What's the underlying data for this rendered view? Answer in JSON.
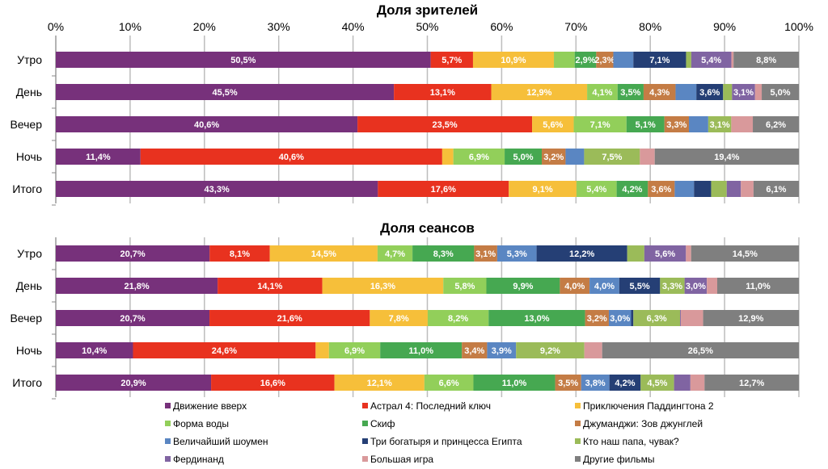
{
  "chart_data": [
    {
      "type": "bar",
      "orientation": "horizontal",
      "stacked": "percent",
      "title": "Доля зрителей",
      "xlim": [
        0,
        100
      ],
      "x_ticks": [
        "0%",
        "10%",
        "20%",
        "30%",
        "40%",
        "50%",
        "60%",
        "70%",
        "80%",
        "90%",
        "100%"
      ],
      "grid": true,
      "categories": [
        "Утро",
        "День",
        "Вечер",
        "Ночь",
        "Итого"
      ],
      "rows": [
        {
          "values": [
            50.5,
            5.7,
            10.9,
            2.8,
            2.9,
            2.3,
            2.7,
            7.1,
            0.7,
            5.4,
            0.3,
            8.8
          ],
          "labels": [
            "50,5%",
            "5,7%",
            "10,9%",
            "",
            "2,9%",
            "2,3%",
            "",
            "7,1%",
            "",
            "5,4%",
            "",
            "8,8%"
          ]
        },
        {
          "values": [
            45.5,
            13.1,
            12.9,
            4.1,
            3.5,
            4.3,
            2.8,
            3.6,
            1.2,
            3.1,
            0.9,
            5.0
          ],
          "labels": [
            "45,5%",
            "13,1%",
            "12,9%",
            "4,1%",
            "3,5%",
            "4,3%",
            "",
            "3,6%",
            "",
            "3,1%",
            "",
            "5,0%"
          ]
        },
        {
          "values": [
            40.6,
            23.5,
            5.6,
            7.1,
            5.1,
            3.3,
            2.6,
            0,
            3.1,
            0,
            2.9,
            6.2
          ],
          "labels": [
            "40,6%",
            "23,5%",
            "5,6%",
            "7,1%",
            "5,1%",
            "3,3%",
            "",
            "",
            "3,1%",
            "",
            "",
            "6,2%"
          ]
        },
        {
          "values": [
            11.4,
            40.6,
            1.5,
            6.9,
            5.0,
            3.2,
            2.5,
            0,
            7.5,
            0,
            2.0,
            19.4
          ],
          "labels": [
            "11,4%",
            "40,6%",
            "",
            "6,9%",
            "5,0%",
            "3,2%",
            "",
            "",
            "7,5%",
            "",
            "",
            "19,4%"
          ]
        },
        {
          "values": [
            43.3,
            17.6,
            9.1,
            5.4,
            4.2,
            3.6,
            2.6,
            2.3,
            2.1,
            1.9,
            1.7,
            6.1
          ],
          "labels": [
            "43,3%",
            "17,6%",
            "9,1%",
            "5,4%",
            "4,2%",
            "3,6%",
            "",
            "",
            "",
            "",
            "",
            "6,1%"
          ]
        }
      ]
    },
    {
      "type": "bar",
      "orientation": "horizontal",
      "stacked": "percent",
      "title": "Доля сеансов",
      "xlim": [
        0,
        100
      ],
      "grid": true,
      "categories": [
        "Утро",
        "День",
        "Вечер",
        "Ночь",
        "Итого"
      ],
      "rows": [
        {
          "values": [
            20.7,
            8.1,
            14.5,
            4.7,
            8.3,
            3.1,
            5.3,
            12.2,
            2.3,
            5.6,
            0.7,
            14.5
          ],
          "labels": [
            "20,7%",
            "8,1%",
            "14,5%",
            "4,7%",
            "8,3%",
            "3,1%",
            "5,3%",
            "12,2%",
            "",
            "5,6%",
            "",
            "14,5%"
          ]
        },
        {
          "values": [
            21.8,
            14.1,
            16.3,
            5.8,
            9.9,
            4.0,
            4.0,
            5.5,
            3.3,
            3.0,
            1.4,
            11.0
          ],
          "labels": [
            "21,8%",
            "14,1%",
            "16,3%",
            "5,8%",
            "9,9%",
            "4,0%",
            "4,0%",
            "5,5%",
            "3,3%",
            "3,0%",
            "",
            "11,0%"
          ]
        },
        {
          "values": [
            20.7,
            21.6,
            7.8,
            8.2,
            13.0,
            3.2,
            3.0,
            0.3,
            6.3,
            0.1,
            3.0,
            12.9
          ],
          "labels": [
            "20,7%",
            "21,6%",
            "7,8%",
            "8,2%",
            "13,0%",
            "3,2%",
            "3,0%",
            "",
            "6,3%",
            "",
            "",
            "12,9%"
          ]
        },
        {
          "values": [
            10.4,
            24.6,
            1.8,
            6.9,
            11.0,
            3.4,
            3.9,
            0,
            9.2,
            0,
            2.4,
            26.5
          ],
          "labels": [
            "10,4%",
            "24,6%",
            "",
            "6,9%",
            "11,0%",
            "3,4%",
            "3,9%",
            "",
            "9,2%",
            "",
            "",
            "26,5%"
          ]
        },
        {
          "values": [
            20.9,
            16.6,
            12.1,
            6.6,
            11.0,
            3.5,
            3.8,
            4.2,
            4.5,
            2.2,
            1.9,
            12.7
          ],
          "labels": [
            "20,9%",
            "16,6%",
            "12,1%",
            "6,6%",
            "11,0%",
            "3,5%",
            "3,8%",
            "4,2%",
            "4,5%",
            "",
            "",
            "12,7%"
          ]
        }
      ]
    }
  ],
  "series": [
    {
      "name": "Движение вверх",
      "color": "#77317b"
    },
    {
      "name": "Астрал 4: Последний ключ",
      "color": "#e8321f"
    },
    {
      "name": "Приключения Паддингтона 2",
      "color": "#f6bf3a"
    },
    {
      "name": "Форма воды",
      "color": "#92cf5a"
    },
    {
      "name": "Скиф",
      "color": "#46a851"
    },
    {
      "name": "Джуманджи: Зов джунглей",
      "color": "#c47c45"
    },
    {
      "name": "Величайший шоумен",
      "color": "#5a86c2"
    },
    {
      "name": "Три богатыря и принцесса Египта",
      "color": "#253f75"
    },
    {
      "name": "Кто наш папа, чувак?",
      "color": "#9bbb59"
    },
    {
      "name": "Фердинанд",
      "color": "#8064a2"
    },
    {
      "name": "Большая игра",
      "color": "#d9999b"
    },
    {
      "name": "Другие фильмы",
      "color": "#7f7f7f"
    }
  ],
  "legend": {
    "placement": "bottom"
  }
}
